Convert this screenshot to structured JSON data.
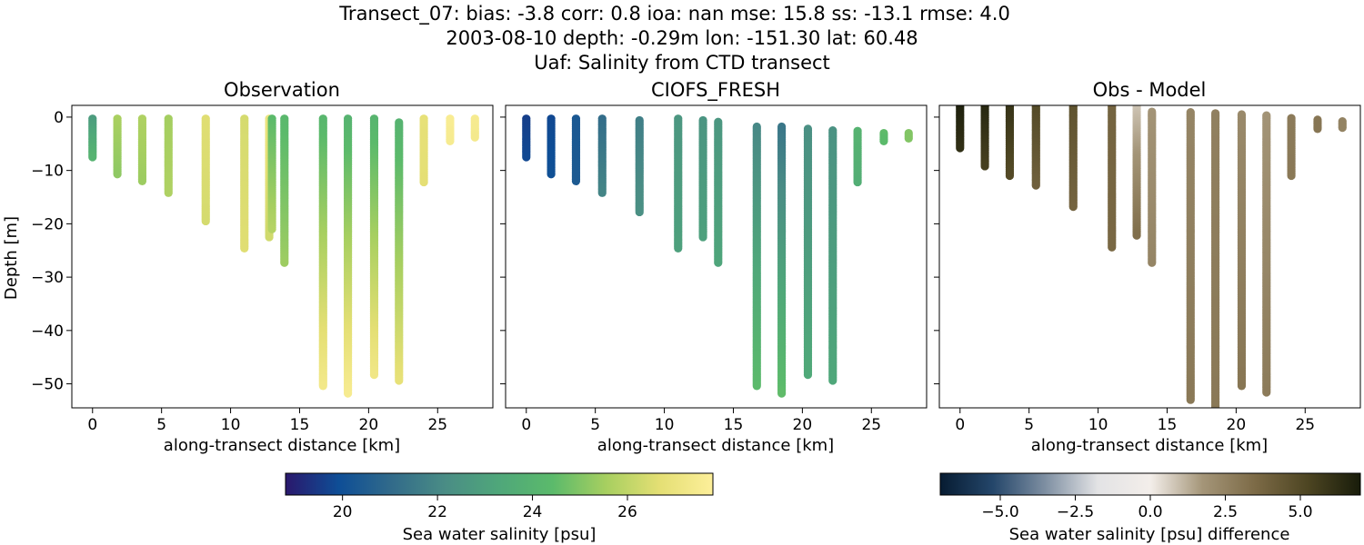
{
  "figure": {
    "title_lines": [
      "Transect_07: bias: -3.8  corr: 0.8  ioa: nan  mse: 15.8  ss: -13.1  rmse: 4.0",
      "2003-08-10 depth: -0.29m lon: -151.30 lat: 60.48",
      "Uaf: Salinity from CTD transect"
    ]
  },
  "chart_data": [
    {
      "type": "scatter",
      "title": "Observation",
      "xlabel": "along-transect distance [km]",
      "ylabel": "Depth [m]",
      "xlim": [
        -1.5,
        29
      ],
      "ylim": [
        -54.5,
        2.2
      ],
      "xticks": [
        0,
        5,
        10,
        15,
        20,
        25
      ],
      "yticks": [
        0,
        -10,
        -20,
        -30,
        -40,
        -50
      ],
      "colormap": "haline",
      "profiles": [
        {
          "x": 0.0,
          "top": -0.3,
          "bottom": -7.5,
          "surface_value": 22.8,
          "bottom_value": 24.0
        },
        {
          "x": 1.8,
          "top": -0.3,
          "bottom": -10.7,
          "surface_value": 25.6,
          "bottom_value": 25.2
        },
        {
          "x": 3.6,
          "top": -0.3,
          "bottom": -12.0,
          "surface_value": 25.7,
          "bottom_value": 25.4
        },
        {
          "x": 5.5,
          "top": -0.3,
          "bottom": -14.2,
          "surface_value": 25.5,
          "bottom_value": 25.7
        },
        {
          "x": 8.2,
          "top": -0.3,
          "bottom": -19.5,
          "surface_value": 26.6,
          "bottom_value": 26.4
        },
        {
          "x": 11.0,
          "top": -0.3,
          "bottom": -24.6,
          "surface_value": 26.4,
          "bottom_value": 26.6
        },
        {
          "x": 12.8,
          "top": -0.3,
          "bottom": -22.5,
          "surface_value": 27.0,
          "bottom_value": 26.3
        },
        {
          "x": 13.0,
          "top": -0.3,
          "bottom": -21.0,
          "surface_value": 24.4,
          "bottom_value": 25.8
        },
        {
          "x": 13.9,
          "top": -0.3,
          "bottom": -27.3,
          "surface_value": 24.3,
          "bottom_value": 25.4
        },
        {
          "x": 16.7,
          "top": -0.3,
          "bottom": -50.4,
          "surface_value": 24.2,
          "bottom_value": 27.3
        },
        {
          "x": 18.5,
          "top": -0.3,
          "bottom": -51.8,
          "surface_value": 24.0,
          "bottom_value": 27.5
        },
        {
          "x": 20.4,
          "top": -0.3,
          "bottom": -48.3,
          "surface_value": 24.1,
          "bottom_value": 27.2
        },
        {
          "x": 22.2,
          "top": -1.0,
          "bottom": -49.4,
          "surface_value": 24.0,
          "bottom_value": 26.8
        },
        {
          "x": 24.0,
          "top": -0.3,
          "bottom": -12.2,
          "surface_value": 26.8,
          "bottom_value": 26.7
        },
        {
          "x": 25.9,
          "top": -0.3,
          "bottom": -4.5,
          "surface_value": 27.6,
          "bottom_value": 27.5
        },
        {
          "x": 27.7,
          "top": -0.3,
          "bottom": -3.8,
          "surface_value": 27.5,
          "bottom_value": 27.4
        }
      ]
    },
    {
      "type": "scatter",
      "title": "CIOFS_FRESH",
      "xlabel": "along-transect distance [km]",
      "xlim": [
        -1.5,
        29
      ],
      "ylim": [
        -54.5,
        2.2
      ],
      "xticks": [
        0,
        5,
        10,
        15,
        20,
        25
      ],
      "yticks": [
        0,
        -10,
        -20,
        -30,
        -40,
        -50
      ],
      "colormap": "haline",
      "profiles": [
        {
          "x": 0.0,
          "top": -0.3,
          "bottom": -7.5,
          "surface_value": 19.6,
          "bottom_value": 19.8
        },
        {
          "x": 1.8,
          "top": -0.3,
          "bottom": -10.7,
          "surface_value": 19.8,
          "bottom_value": 20.0
        },
        {
          "x": 3.6,
          "top": -0.3,
          "bottom": -12.0,
          "surface_value": 20.3,
          "bottom_value": 20.4
        },
        {
          "x": 5.5,
          "top": -0.3,
          "bottom": -14.2,
          "surface_value": 21.1,
          "bottom_value": 21.9
        },
        {
          "x": 8.2,
          "top": -0.6,
          "bottom": -17.8,
          "surface_value": 21.7,
          "bottom_value": 22.3
        },
        {
          "x": 11.0,
          "top": -0.3,
          "bottom": -24.6,
          "surface_value": 22.6,
          "bottom_value": 23.0
        },
        {
          "x": 12.8,
          "top": -0.6,
          "bottom": -22.5,
          "surface_value": 22.5,
          "bottom_value": 23.0
        },
        {
          "x": 13.9,
          "top": -0.9,
          "bottom": -27.3,
          "surface_value": 22.6,
          "bottom_value": 23.2
        },
        {
          "x": 16.7,
          "top": -1.8,
          "bottom": -50.4,
          "surface_value": 22.0,
          "bottom_value": 24.4
        },
        {
          "x": 18.5,
          "top": -1.8,
          "bottom": -51.8,
          "surface_value": 21.4,
          "bottom_value": 24.5
        },
        {
          "x": 20.4,
          "top": -2.2,
          "bottom": -48.3,
          "surface_value": 22.3,
          "bottom_value": 23.4
        },
        {
          "x": 22.2,
          "top": -2.5,
          "bottom": -49.4,
          "surface_value": 22.4,
          "bottom_value": 23.3
        },
        {
          "x": 24.0,
          "top": -2.6,
          "bottom": -12.2,
          "surface_value": 24.0,
          "bottom_value": 23.7
        },
        {
          "x": 25.9,
          "top": -3.0,
          "bottom": -4.5,
          "surface_value": 24.5,
          "bottom_value": 24.4
        },
        {
          "x": 27.7,
          "top": -3.0,
          "bottom": -4.0,
          "surface_value": 25.0,
          "bottom_value": 25.0
        }
      ]
    },
    {
      "type": "scatter",
      "title": "Obs - Model",
      "xlabel": "along-transect distance [km]",
      "xlim": [
        -1.5,
        29
      ],
      "ylim": [
        -54.5,
        2.2
      ],
      "xticks": [
        0,
        5,
        10,
        15,
        20,
        25
      ],
      "yticks": [
        0,
        -10,
        -20,
        -30,
        -40,
        -50
      ],
      "colormap": "diff",
      "profiles": [
        {
          "x": 0.0,
          "top": 2.0,
          "bottom": -5.8,
          "surface_value": 6.8,
          "bottom_value": 6.2
        },
        {
          "x": 1.8,
          "top": 2.0,
          "bottom": -9.2,
          "surface_value": 6.5,
          "bottom_value": 5.5
        },
        {
          "x": 3.6,
          "top": 2.0,
          "bottom": -11.0,
          "surface_value": 6.0,
          "bottom_value": 5.0
        },
        {
          "x": 5.5,
          "top": 2.0,
          "bottom": -12.8,
          "surface_value": 5.0,
          "bottom_value": 4.0
        },
        {
          "x": 8.2,
          "top": 2.0,
          "bottom": -16.8,
          "surface_value": 4.6,
          "bottom_value": 3.8
        },
        {
          "x": 11.0,
          "top": 2.0,
          "bottom": -24.4,
          "surface_value": 3.8,
          "bottom_value": 3.6
        },
        {
          "x": 12.8,
          "top": 2.0,
          "bottom": -22.2,
          "surface_value": 0.8,
          "bottom_value": 3.3
        },
        {
          "x": 13.9,
          "top": 1.0,
          "bottom": -27.3,
          "surface_value": 1.8,
          "bottom_value": 2.4
        },
        {
          "x": 16.7,
          "top": 0.9,
          "bottom": -53.0,
          "surface_value": 2.4,
          "bottom_value": 2.9
        },
        {
          "x": 18.5,
          "top": 0.7,
          "bottom": -55.0,
          "surface_value": 2.6,
          "bottom_value": 2.9
        },
        {
          "x": 20.4,
          "top": 0.5,
          "bottom": -50.4,
          "surface_value": 2.2,
          "bottom_value": 3.0
        },
        {
          "x": 22.2,
          "top": 0.3,
          "bottom": -51.6,
          "surface_value": 1.8,
          "bottom_value": 2.8
        },
        {
          "x": 24.0,
          "top": -0.2,
          "bottom": -11.0,
          "surface_value": 2.8,
          "bottom_value": 2.9
        },
        {
          "x": 25.9,
          "top": -0.5,
          "bottom": -2.2,
          "surface_value": 3.0,
          "bottom_value": 3.0
        },
        {
          "x": 27.7,
          "top": -0.8,
          "bottom": -2.0,
          "surface_value": 2.5,
          "bottom_value": 2.5
        }
      ]
    }
  ],
  "colorbars": [
    {
      "label": "Sea water salinity [psu]",
      "min": 18.8,
      "max": 27.8,
      "ticks": [
        "20",
        "22",
        "24",
        "26"
      ],
      "tick_values": [
        20,
        22,
        24,
        26
      ],
      "colormap": "haline"
    },
    {
      "label": "Sea water salinity [psu] difference",
      "min": -7.0,
      "max": 7.0,
      "ticks": [
        "−5.0",
        "−2.5",
        "0.0",
        "2.5",
        "5.0"
      ],
      "tick_values": [
        -5.0,
        -2.5,
        0.0,
        2.5,
        5.0
      ],
      "colormap": "diff"
    }
  ],
  "colormaps": {
    "haline": [
      "#2a186c",
      "#0e4e96",
      "#326b8a",
      "#4a8d85",
      "#4fa77a",
      "#5bba6b",
      "#a7cf60",
      "#e4df74",
      "#fdef9a"
    ],
    "diff": [
      "#071c32",
      "#24466a",
      "#7e8fa2",
      "#e3e3e5",
      "#f3eeea",
      "#a49578",
      "#7c6a46",
      "#4d4522",
      "#181c0a"
    ]
  }
}
